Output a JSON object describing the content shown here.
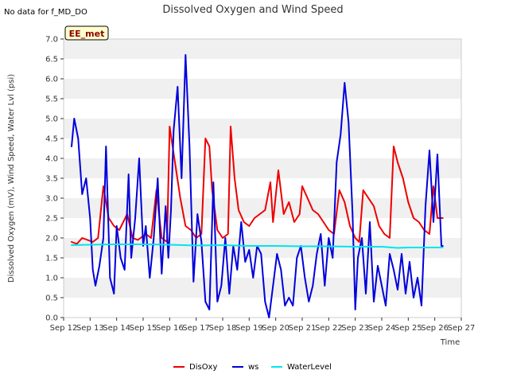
{
  "notice": "No data for f_MD_DO",
  "station_label": "EE_met",
  "chart_data": {
    "type": "line",
    "title": "Dissolved Oxygen and Wind Speed",
    "xlabel": "Time",
    "ylabel": "Dissolved Oxygen (mV), Wind Speed, Water Lvl (psi)",
    "xlim": [
      12,
      27
    ],
    "ylim": [
      0.0,
      7.0
    ],
    "x_unit": "day of September",
    "xticks": [
      "Sep 12",
      "Sep 13",
      "Sep 14",
      "Sep 15",
      "Sep 16",
      "Sep 17",
      "Sep 18",
      "Sep 19",
      "Sep 20",
      "Sep 21",
      "Sep 22",
      "Sep 23",
      "Sep 24",
      "Sep 25",
      "Sep 26",
      "Sep 27"
    ],
    "yticks": [
      "0.0",
      "0.5",
      "1.0",
      "1.5",
      "2.0",
      "2.5",
      "3.0",
      "3.5",
      "4.0",
      "4.5",
      "5.0",
      "5.5",
      "6.0",
      "6.5",
      "7.0"
    ],
    "grid": "horizontal bands",
    "legend_position": "bottom",
    "series": [
      {
        "name": "DisOxy",
        "color": "#ee0000",
        "x": [
          12.3,
          12.5,
          12.7,
          12.9,
          13.1,
          13.3,
          13.5,
          13.7,
          13.9,
          14.1,
          14.4,
          14.6,
          14.8,
          15.1,
          15.3,
          15.5,
          15.7,
          15.9,
          16.0,
          16.2,
          16.4,
          16.6,
          16.8,
          17.0,
          17.2,
          17.35,
          17.5,
          17.6,
          17.8,
          18.0,
          18.2,
          18.3,
          18.45,
          18.6,
          18.8,
          19.0,
          19.2,
          19.4,
          19.6,
          19.8,
          19.9,
          20.1,
          20.3,
          20.5,
          20.7,
          20.9,
          21.0,
          21.2,
          21.4,
          21.6,
          21.8,
          22.0,
          22.2,
          22.4,
          22.6,
          22.8,
          23.0,
          23.15,
          23.3,
          23.5,
          23.7,
          23.9,
          24.1,
          24.3,
          24.45,
          24.6,
          24.8,
          25.0,
          25.2,
          25.4,
          25.6,
          25.8,
          25.95,
          26.1,
          26.3
        ],
        "y": [
          1.9,
          1.85,
          2.0,
          1.95,
          1.9,
          2.0,
          3.3,
          2.5,
          2.3,
          2.2,
          2.6,
          2.0,
          1.95,
          2.1,
          2.0,
          3.2,
          2.0,
          1.9,
          4.8,
          3.9,
          3.0,
          2.3,
          2.2,
          2.0,
          2.1,
          4.5,
          4.3,
          3.2,
          2.2,
          2.0,
          2.1,
          4.8,
          3.5,
          2.7,
          2.4,
          2.3,
          2.5,
          2.6,
          2.7,
          3.4,
          2.4,
          3.7,
          2.6,
          2.9,
          2.4,
          2.6,
          3.3,
          3.0,
          2.7,
          2.6,
          2.4,
          2.2,
          2.1,
          3.2,
          2.9,
          2.3,
          2.0,
          1.9,
          3.2,
          3.0,
          2.8,
          2.3,
          2.1,
          2.0,
          4.3,
          3.9,
          3.5,
          2.9,
          2.5,
          2.4,
          2.2,
          2.1,
          3.3,
          2.5,
          2.5
        ]
      },
      {
        "name": "ws",
        "color": "#0000dd",
        "x": [
          12.3,
          12.4,
          12.55,
          12.7,
          12.85,
          13.0,
          13.1,
          13.2,
          13.35,
          13.5,
          13.6,
          13.75,
          13.9,
          14.0,
          14.15,
          14.3,
          14.45,
          14.55,
          14.7,
          14.85,
          15.0,
          15.1,
          15.25,
          15.4,
          15.55,
          15.7,
          15.85,
          15.95,
          16.05,
          16.15,
          16.3,
          16.45,
          16.6,
          16.75,
          16.9,
          17.05,
          17.2,
          17.35,
          17.5,
          17.65,
          17.8,
          17.95,
          18.1,
          18.25,
          18.4,
          18.55,
          18.7,
          18.85,
          19.0,
          19.15,
          19.3,
          19.45,
          19.6,
          19.75,
          19.9,
          20.05,
          20.2,
          20.35,
          20.5,
          20.65,
          20.8,
          20.95,
          21.1,
          21.25,
          21.4,
          21.55,
          21.7,
          21.85,
          22.0,
          22.15,
          22.3,
          22.45,
          22.6,
          22.75,
          22.9,
          23.0,
          23.1,
          23.25,
          23.4,
          23.55,
          23.7,
          23.85,
          24.0,
          24.15,
          24.3,
          24.45,
          24.6,
          24.75,
          24.9,
          25.05,
          25.2,
          25.35,
          25.5,
          25.65,
          25.8,
          25.95,
          26.1,
          26.25,
          26.3
        ],
        "y": [
          4.3,
          5.0,
          4.5,
          3.1,
          3.5,
          2.5,
          1.2,
          0.8,
          1.3,
          2.0,
          4.3,
          1.0,
          0.6,
          2.3,
          1.5,
          1.2,
          3.6,
          1.5,
          2.5,
          4.0,
          1.8,
          2.3,
          1.0,
          2.0,
          3.5,
          1.1,
          2.8,
          1.5,
          2.7,
          4.7,
          5.8,
          3.5,
          6.6,
          4.3,
          0.9,
          2.6,
          1.9,
          0.4,
          0.2,
          3.4,
          0.4,
          0.8,
          2.0,
          0.6,
          1.8,
          1.2,
          2.4,
          1.4,
          1.7,
          1.0,
          1.8,
          1.6,
          0.4,
          0.0,
          0.8,
          1.6,
          1.2,
          0.3,
          0.5,
          0.3,
          1.5,
          1.8,
          1.0,
          0.4,
          0.8,
          1.6,
          2.1,
          0.8,
          2.0,
          1.5,
          3.9,
          4.6,
          5.9,
          4.9,
          2.6,
          0.2,
          1.5,
          2.0,
          0.6,
          2.4,
          0.4,
          1.3,
          0.8,
          0.3,
          1.6,
          1.2,
          0.7,
          1.6,
          0.6,
          1.4,
          0.5,
          1.0,
          0.3,
          2.8,
          4.2,
          2.4,
          4.1,
          1.8,
          1.8
        ]
      },
      {
        "name": "WaterLevel",
        "color": "#00e5ee",
        "x": [
          12.3,
          13.0,
          14.0,
          15.0,
          16.0,
          17.0,
          18.0,
          19.0,
          20.0,
          21.0,
          22.0,
          23.0,
          24.0,
          24.6,
          25.0,
          26.0,
          26.3
        ],
        "y": [
          1.82,
          1.83,
          1.84,
          1.84,
          1.83,
          1.81,
          1.82,
          1.8,
          1.8,
          1.79,
          1.79,
          1.78,
          1.78,
          1.75,
          1.76,
          1.76,
          1.76
        ]
      }
    ]
  }
}
